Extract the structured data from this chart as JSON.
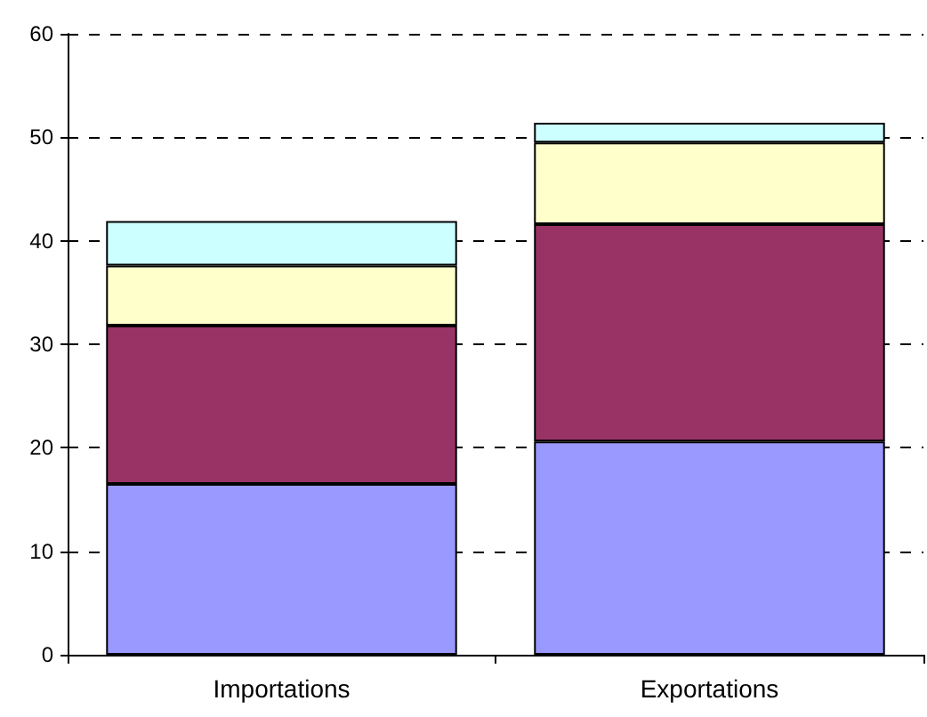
{
  "chart_data": {
    "type": "bar",
    "stacked": true,
    "categories": [
      "Importations",
      "Exportations"
    ],
    "series": [
      {
        "color": "#9999ff",
        "values": [
          16.5,
          20.6
        ]
      },
      {
        "color": "#993366",
        "values": [
          15.3,
          21.0
        ]
      },
      {
        "color": "#ffffcc",
        "values": [
          5.8,
          7.9
        ]
      },
      {
        "color": "#ccffff",
        "values": [
          4.3,
          1.9
        ]
      }
    ],
    "ylim": [
      0,
      60
    ],
    "yticks": [
      0,
      10,
      20,
      30,
      40,
      50,
      60
    ],
    "grid": "y"
  }
}
